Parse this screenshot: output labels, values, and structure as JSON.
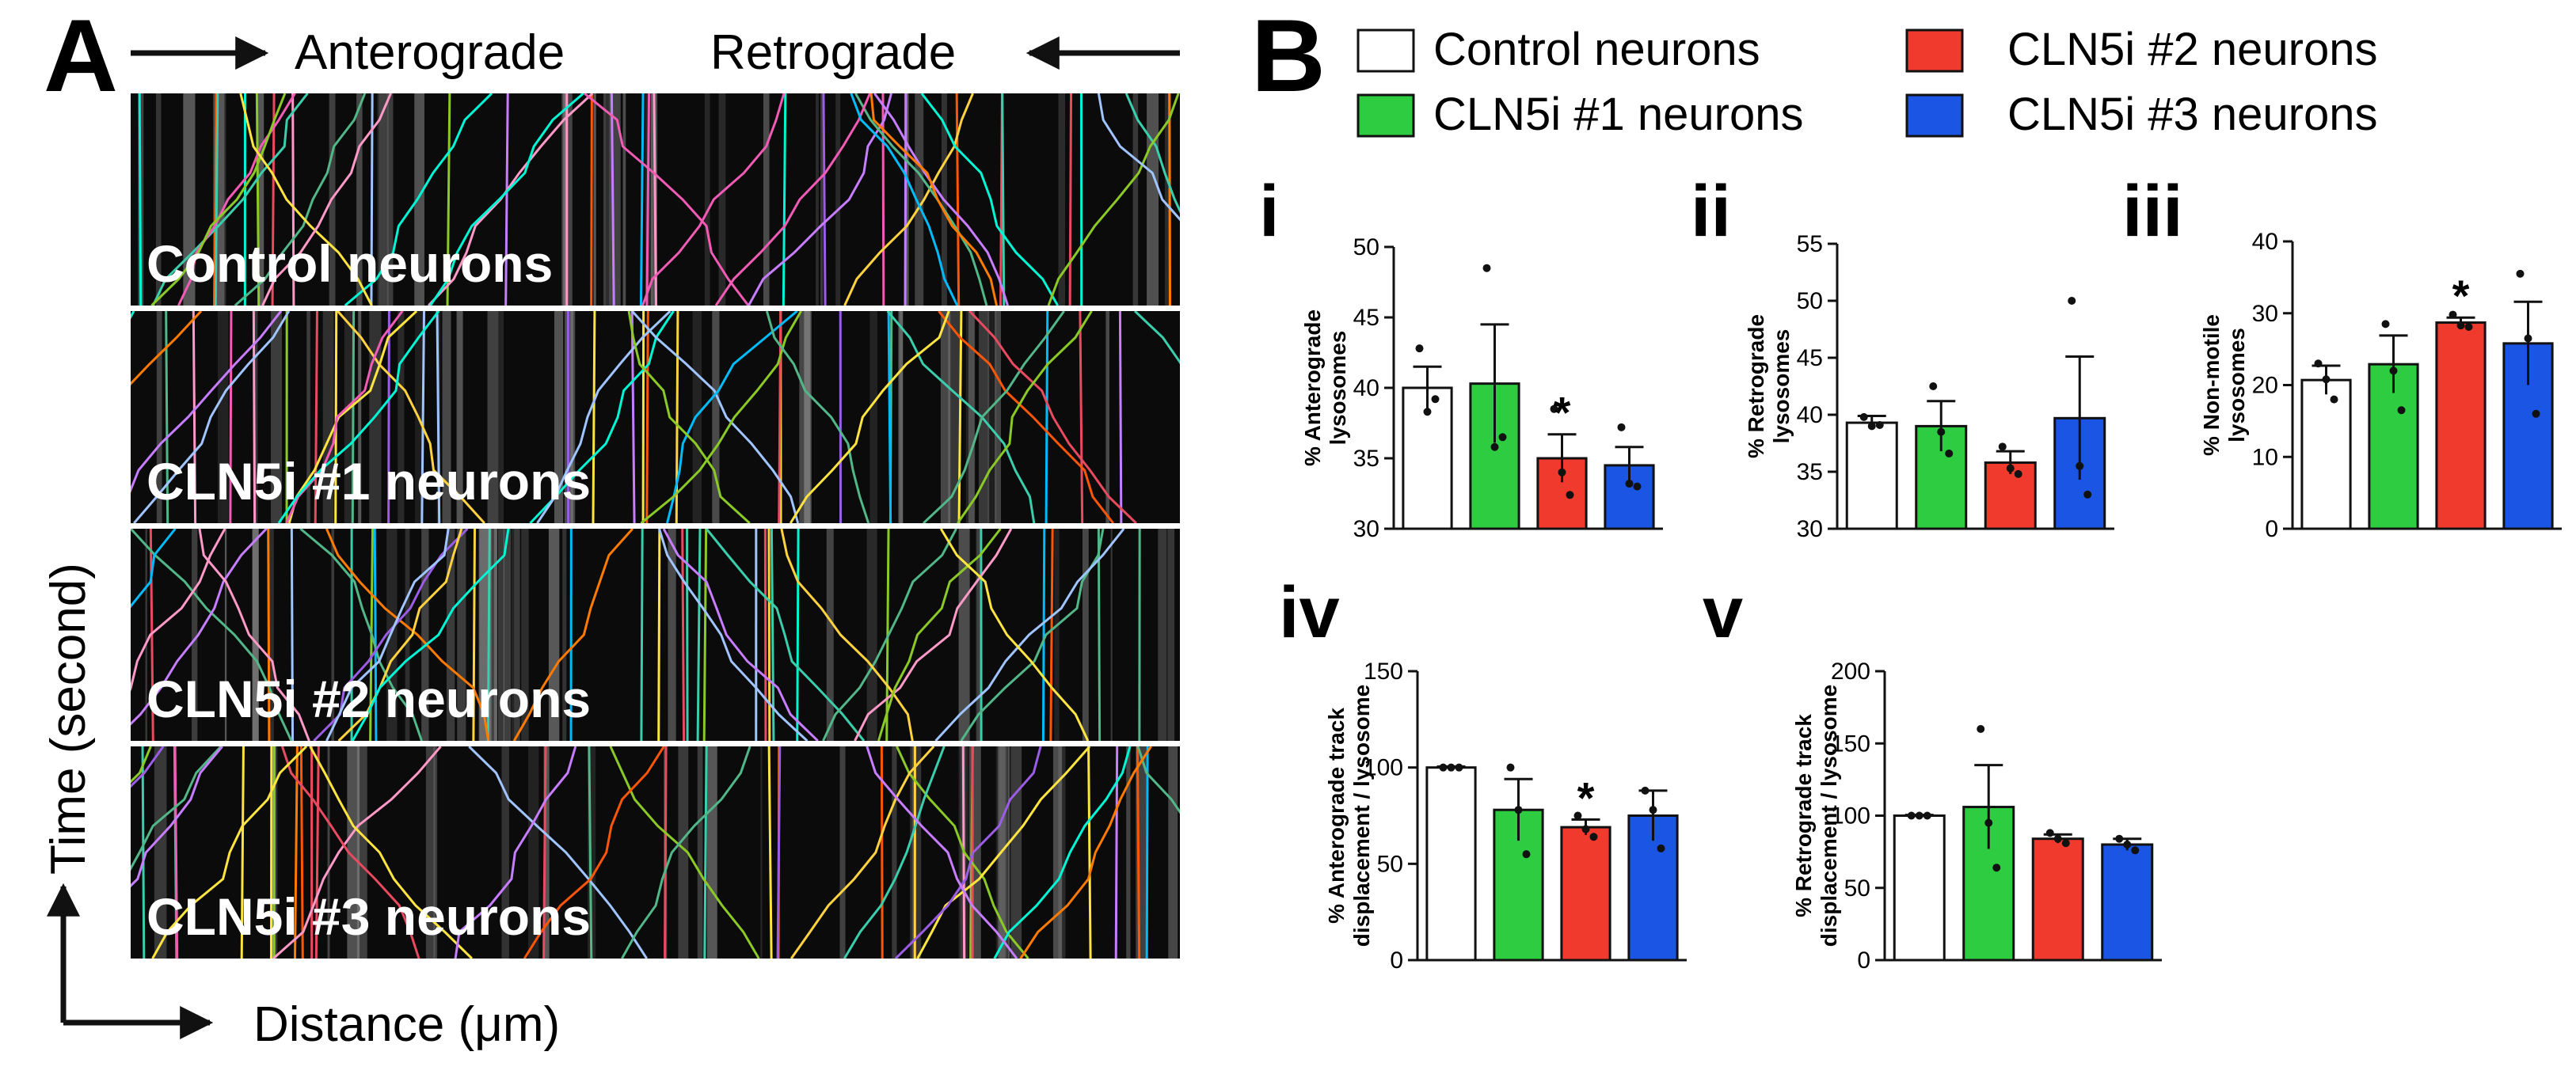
{
  "panelA": {
    "letter": "A",
    "header_left": "Anterograde",
    "header_right": "Retrograde",
    "kymographs": [
      {
        "label": "Control neurons"
      },
      {
        "label": "CLN5i #1 neurons"
      },
      {
        "label": "CLN5i #2 neurons"
      },
      {
        "label": "CLN5i #3 neurons"
      }
    ],
    "y_axis_label": "Time (second)",
    "x_axis_label": "Distance (μm)"
  },
  "panelB": {
    "letter": "B",
    "legend": [
      {
        "label": "Control neurons",
        "color": "#ffffff"
      },
      {
        "label": "CLN5i #1 neurons",
        "color": "#2ecc40"
      },
      {
        "label": "CLN5i #2 neurons",
        "color": "#f03a2e"
      },
      {
        "label": "CLN5i #3 neurons",
        "color": "#1a55e3"
      }
    ]
  },
  "chart_data": [
    {
      "id": "i",
      "type": "bar",
      "subpanel": "i",
      "ylabel_lines": [
        "% Anterograde",
        "lysosomes"
      ],
      "categories": [
        "Control neurons",
        "CLN5i #1 neurons",
        "CLN5i #2 neurons",
        "CLN5i #3 neurons"
      ],
      "values": [
        40,
        40.3,
        35,
        34.5
      ],
      "errors": [
        1.5,
        4.2,
        1.7,
        1.3
      ],
      "points": [
        [
          42.8,
          38.3,
          39.2
        ],
        [
          48.5,
          35.8,
          36.5
        ],
        [
          38.5,
          34.0,
          32.4
        ],
        [
          37.2,
          33.2,
          33.0
        ]
      ],
      "significant": [
        false,
        false,
        true,
        false
      ],
      "ylim": [
        30,
        50
      ],
      "yticks": [
        30,
        35,
        40,
        45,
        50
      ]
    },
    {
      "id": "ii",
      "type": "bar",
      "subpanel": "ii",
      "ylabel_lines": [
        "% Retrograde",
        "lysosomes"
      ],
      "categories": [
        "Control neurons",
        "CLN5i #1 neurons",
        "CLN5i #2 neurons",
        "CLN5i #3 neurons"
      ],
      "values": [
        39.3,
        39,
        35.8,
        39.7
      ],
      "errors": [
        0.6,
        2.2,
        1.0,
        5.4
      ],
      "points": [
        [
          39.8,
          39.0,
          39.1
        ],
        [
          42.5,
          38.5,
          36.6
        ],
        [
          37.2,
          35.3,
          34.8
        ],
        [
          50.0,
          35.5,
          33.0
        ]
      ],
      "significant": [
        false,
        false,
        false,
        false
      ],
      "ylim": [
        30,
        55
      ],
      "yticks": [
        30,
        35,
        40,
        45,
        50,
        55
      ]
    },
    {
      "id": "iii",
      "type": "bar",
      "subpanel": "iii",
      "ylabel_lines": [
        "% Non-motile",
        "lysosomes"
      ],
      "categories": [
        "Control neurons",
        "CLN5i #1 neurons",
        "CLN5i #2 neurons",
        "CLN5i #3 neurons"
      ],
      "values": [
        20.7,
        22.9,
        28.7,
        25.8
      ],
      "errors": [
        2.0,
        4.0,
        0.7,
        5.8
      ],
      "points": [
        [
          23.0,
          20.8,
          18.0
        ],
        [
          28.5,
          22.0,
          16.5
        ],
        [
          29.8,
          28.3,
          28.1
        ],
        [
          35.5,
          26.5,
          16.0
        ]
      ],
      "significant": [
        false,
        false,
        true,
        false
      ],
      "ylim": [
        0,
        40
      ],
      "yticks": [
        0,
        10,
        20,
        30,
        40
      ]
    },
    {
      "id": "iv",
      "type": "bar",
      "subpanel": "iv",
      "ylabel_lines": [
        "% Anterograde track",
        "displacement / lysosome"
      ],
      "categories": [
        "Control neurons",
        "CLN5i #1 neurons",
        "CLN5i #2 neurons",
        "CLN5i #3 neurons"
      ],
      "values": [
        100,
        78,
        69,
        75
      ],
      "errors": [
        0.5,
        16,
        4,
        13
      ],
      "points": [
        [
          100,
          100,
          100
        ],
        [
          100,
          78,
          55
        ],
        [
          75,
          68,
          64
        ],
        [
          88,
          78,
          58
        ]
      ],
      "significant": [
        false,
        false,
        true,
        false
      ],
      "ylim": [
        0,
        150
      ],
      "yticks": [
        0,
        50,
        100,
        150
      ]
    },
    {
      "id": "v",
      "type": "bar",
      "subpanel": "v",
      "ylabel_lines": [
        "% Retrograde track",
        "displacement / lysosome"
      ],
      "categories": [
        "Control neurons",
        "CLN5i #1 neurons",
        "CLN5i #2 neurons",
        "CLN5i #3 neurons"
      ],
      "values": [
        100,
        106,
        84,
        80
      ],
      "errors": [
        0.5,
        29,
        3,
        4
      ],
      "points": [
        [
          100,
          100,
          100
        ],
        [
          160,
          95,
          64
        ],
        [
          88,
          84,
          81
        ],
        [
          84,
          80,
          76
        ]
      ],
      "significant": [
        false,
        false,
        false,
        false
      ],
      "ylim": [
        0,
        200
      ],
      "yticks": [
        0,
        50,
        100,
        150,
        200
      ]
    }
  ]
}
